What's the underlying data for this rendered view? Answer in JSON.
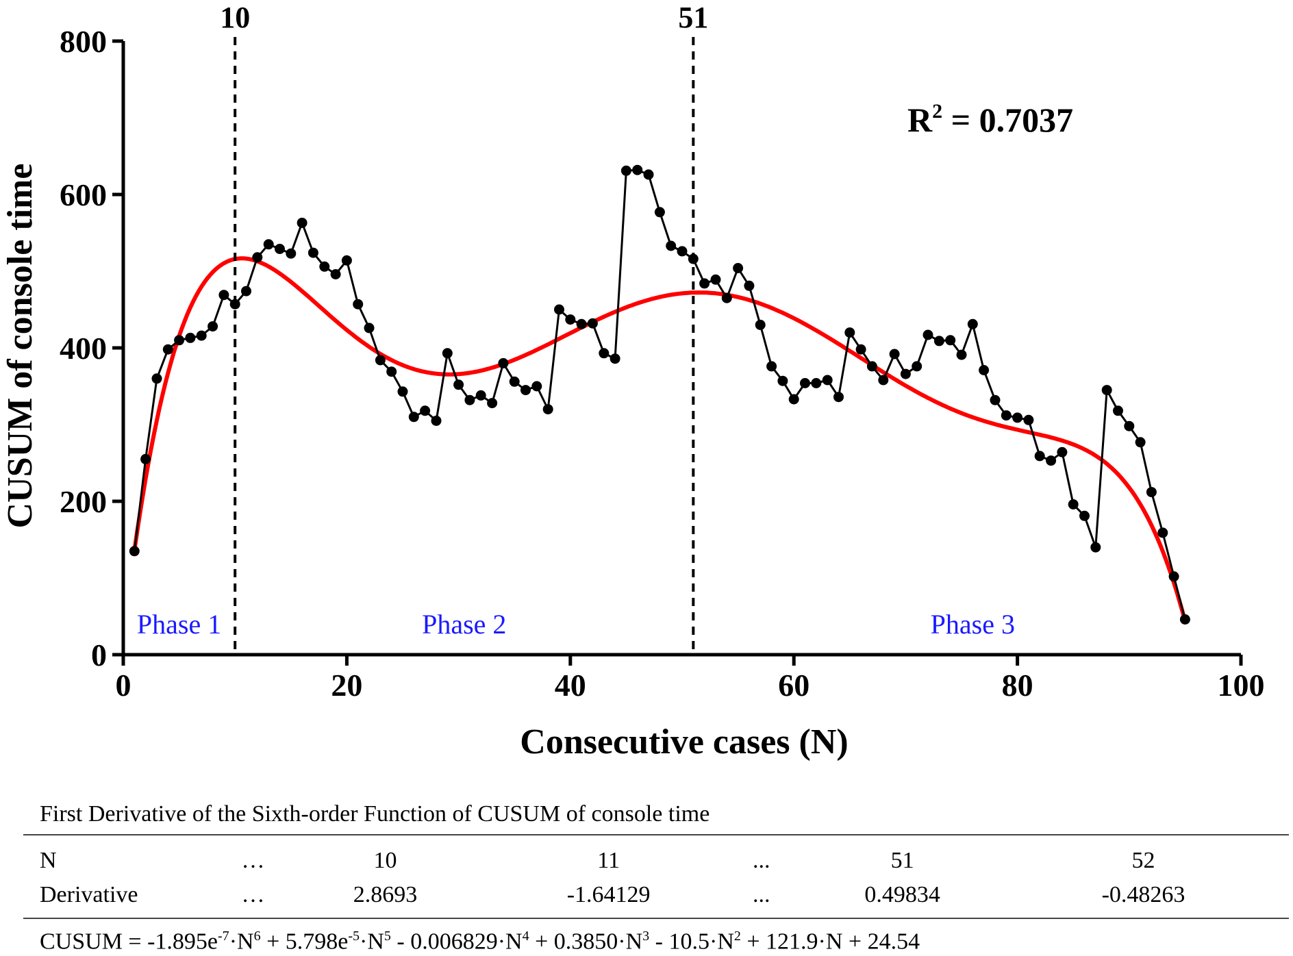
{
  "colors": {
    "data_line": "#000000",
    "fit_line": "#ff0000",
    "phase_text": "#1a1aff"
  },
  "chart_data": {
    "type": "line",
    "xlabel": "Consecutive cases (N)",
    "ylabel": "CUSUM of console time",
    "xlim": [
      0,
      100
    ],
    "ylim": [
      0,
      800
    ],
    "x_ticks": [
      0,
      20,
      40,
      60,
      80,
      100
    ],
    "y_ticks": [
      0,
      200,
      400,
      600,
      800
    ],
    "grid": false,
    "annotation": {
      "r2_prefix": "R",
      "r2_exponent": "2",
      "r2_value": " = 0.7037"
    },
    "vlines": [
      {
        "x": 10,
        "label": "10"
      },
      {
        "x": 51,
        "label": "51"
      }
    ],
    "phases": [
      {
        "label": "Phase 1",
        "x": 5,
        "y": 40
      },
      {
        "label": "Phase 2",
        "x": 30.5,
        "y": 40
      },
      {
        "label": "Phase 3",
        "x": 76,
        "y": 40
      }
    ],
    "series": [
      {
        "style": "line-markers",
        "x": [
          1,
          2,
          3,
          4,
          5,
          6,
          7,
          8,
          9,
          10,
          11,
          12,
          13,
          14,
          15,
          16,
          17,
          18,
          19,
          20,
          21,
          22,
          23,
          24,
          25,
          26,
          27,
          28,
          29,
          30,
          31,
          32,
          33,
          34,
          35,
          36,
          37,
          38,
          39,
          40,
          41,
          42,
          43,
          44,
          45,
          46,
          47,
          48,
          49,
          50,
          51,
          52,
          53,
          54,
          55,
          56,
          57,
          58,
          59,
          60,
          61,
          62,
          63,
          64,
          65,
          66,
          67,
          68,
          69,
          70,
          71,
          72,
          73,
          74,
          75,
          76,
          77,
          78,
          79,
          80,
          81,
          82,
          83,
          84,
          85,
          86,
          87,
          88,
          89,
          90,
          91,
          92,
          93,
          94,
          95
        ],
        "y": [
          135,
          255,
          360,
          398,
          410,
          413,
          416,
          428,
          469,
          457,
          474,
          518,
          535,
          529,
          523,
          563,
          524,
          506,
          496,
          514,
          457,
          426,
          384,
          369,
          343,
          310,
          318,
          305,
          393,
          352,
          332,
          338,
          328,
          380,
          356,
          345,
          350,
          320,
          450,
          437,
          431,
          432,
          393,
          386,
          631,
          632,
          626,
          577,
          533,
          526,
          516,
          484,
          489,
          465,
          504,
          481,
          430,
          376,
          357,
          333,
          354,
          354,
          358,
          336,
          420,
          398,
          376,
          358,
          392,
          366,
          376,
          417,
          409,
          410,
          391,
          431,
          371,
          332,
          312,
          309,
          306,
          259,
          253,
          264,
          196,
          181,
          140,
          345,
          318,
          298,
          277,
          212,
          159,
          102,
          46
        ]
      },
      {
        "style": "fit",
        "formula_coefficients": [
          -1.895e-07,
          5.798e-05,
          -0.006829,
          0.385,
          -10.5,
          121.9,
          24.54
        ],
        "x_range": [
          1,
          95
        ]
      }
    ]
  },
  "table": {
    "caption": "First Derivative of the Sixth-order Function of CUSUM of console time",
    "rows": [
      {
        "label": "N",
        "cells": [
          "…",
          "10",
          "11",
          "...",
          "51",
          "52"
        ]
      },
      {
        "label": "Derivative",
        "cells": [
          "…",
          "2.8693",
          "-1.64129",
          "...",
          "0.49834",
          "-0.48263"
        ]
      }
    ],
    "formula": {
      "p1": "CUSUM = -1.895e",
      "e1": "-7",
      "p2": "·N",
      "e2": "6",
      "p3": " + 5.798e",
      "e3": "-5",
      "p4": "·N",
      "e4": "5",
      "p5": " - 0.006829·N",
      "e5": "4",
      "p6": " + 0.3850·N",
      "e6": "3",
      "p7": " - 10.5·N",
      "e7": "2",
      "p8": " + 121.9·N + 24.54"
    }
  }
}
